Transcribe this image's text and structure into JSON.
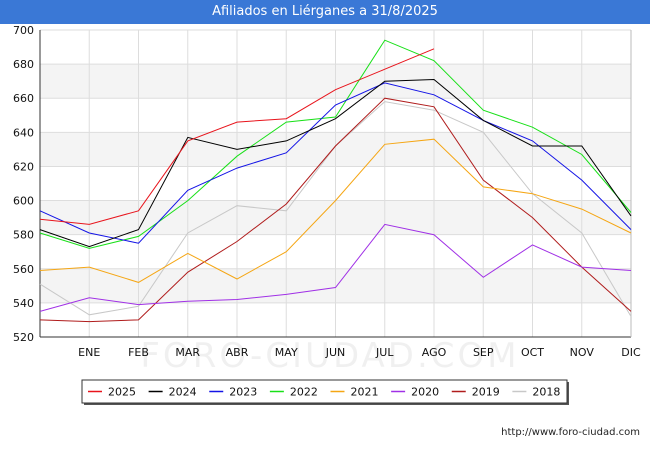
{
  "header": {
    "title": "Afiliados en Liérganes a 31/8/2025"
  },
  "footer": {
    "url": "http://www.foro-ciudad.com"
  },
  "watermark": "FORO-CIUDAD.COM",
  "chart_data": {
    "type": "line",
    "title": "Afiliados en Liérganes a 31/8/2025",
    "xlabel": "",
    "ylabel": "",
    "categories": [
      "",
      "ENE",
      "FEB",
      "MAR",
      "ABR",
      "MAY",
      "JUN",
      "JUL",
      "AGO",
      "SEP",
      "OCT",
      "NOV",
      "DIC"
    ],
    "ylim": [
      520,
      700
    ],
    "yticks": [
      520,
      540,
      560,
      580,
      600,
      620,
      640,
      660,
      680,
      700
    ],
    "grid": true,
    "legend_position": "bottom",
    "series": [
      {
        "name": "2025",
        "color": "#e8141c",
        "values": [
          589,
          586,
          594,
          635,
          646,
          648,
          665,
          677,
          689,
          null,
          null,
          null,
          null
        ]
      },
      {
        "name": "2024",
        "color": "#000000",
        "values": [
          583,
          573,
          583,
          637,
          630,
          635,
          648,
          670,
          671,
          647,
          632,
          632,
          591
        ]
      },
      {
        "name": "2023",
        "color": "#1414e6",
        "values": [
          594,
          581,
          575,
          606,
          619,
          628,
          656,
          669,
          662,
          647,
          635,
          612,
          583
        ]
      },
      {
        "name": "2022",
        "color": "#18e018",
        "values": [
          581,
          572,
          579,
          600,
          626,
          646,
          649,
          694,
          682,
          653,
          643,
          627,
          593
        ]
      },
      {
        "name": "2021",
        "color": "#f5a614",
        "values": [
          559,
          561,
          552,
          569,
          554,
          570,
          600,
          633,
          636,
          608,
          604,
          595,
          581
        ]
      },
      {
        "name": "2020",
        "color": "#a030e6",
        "values": [
          535,
          543,
          539,
          541,
          542,
          545,
          549,
          586,
          580,
          555,
          574,
          561,
          559
        ]
      },
      {
        "name": "2019",
        "color": "#b01c1c",
        "values": [
          530,
          529,
          530,
          558,
          576,
          598,
          632,
          660,
          655,
          612,
          590,
          561,
          535
        ]
      },
      {
        "name": "2018",
        "color": "#c8c8c8",
        "values": [
          551,
          533,
          538,
          581,
          597,
          594,
          632,
          658,
          653,
          640,
          604,
          581,
          532
        ]
      }
    ]
  }
}
